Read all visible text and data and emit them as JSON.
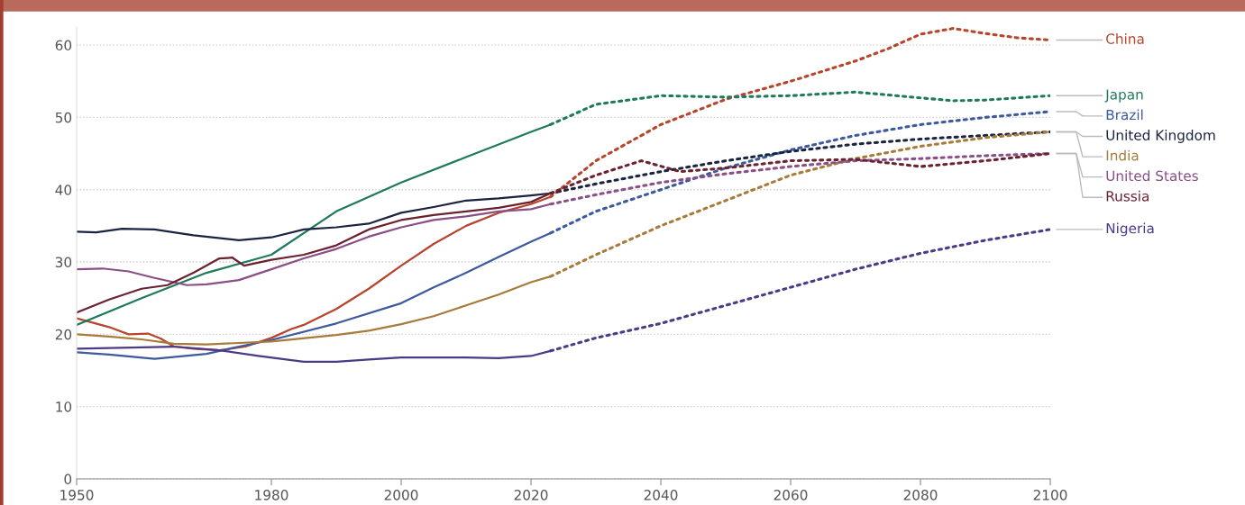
{
  "chart_data": {
    "type": "line",
    "xlim": [
      1950,
      2100
    ],
    "ylim": [
      0,
      62.5
    ],
    "xticks": [
      1950,
      1980,
      2000,
      2020,
      2040,
      2060,
      2080,
      2100
    ],
    "yticks": [
      0,
      10,
      20,
      30,
      40,
      50,
      60
    ],
    "grid": "y",
    "legend": false,
    "marker": "none",
    "series": [
      {
        "color": "#b5452c",
        "line_style": "solid",
        "x": [
          1950,
          1955,
          1958,
          1961,
          1963,
          1965,
          1968,
          1972,
          1976,
          1980,
          1983,
          1985,
          1990,
          1995,
          2000,
          2005,
          2010,
          2015,
          2020,
          2023
        ],
        "values": [
          22.2,
          21,
          20,
          20.1,
          19.4,
          18.3,
          18,
          17.8,
          18.3,
          19.5,
          20.7,
          21.3,
          23.5,
          26.3,
          29.5,
          32.5,
          35,
          36.8,
          38,
          39
        ]
      },
      {
        "name": "China",
        "color": "#b5452c",
        "line_style": "dotted",
        "x": [
          2023,
          2030,
          2040,
          2050,
          2060,
          2070,
          2075,
          2080,
          2085,
          2090,
          2095,
          2100
        ],
        "values": [
          39,
          44,
          49,
          52.5,
          55,
          57.8,
          59.5,
          61.5,
          62.3,
          61.6,
          61,
          60.7
        ]
      },
      {
        "color": "#1f7a5a",
        "line_style": "solid",
        "x": [
          1950,
          1960,
          1970,
          1980,
          1990,
          2000,
          2010,
          2020,
          2023
        ],
        "values": [
          21.3,
          25,
          28.5,
          31,
          37,
          41,
          44.5,
          48,
          49
        ]
      },
      {
        "name": "Japan",
        "color": "#1f7a5a",
        "line_style": "dotted",
        "x": [
          2023,
          2030,
          2040,
          2050,
          2060,
          2070,
          2080,
          2085,
          2090,
          2100
        ],
        "values": [
          49,
          51.8,
          53,
          52.8,
          53,
          53.5,
          52.7,
          52.3,
          52.4,
          53
        ]
      },
      {
        "color": "#3d5a9e",
        "line_style": "solid",
        "x": [
          1950,
          1955,
          1962,
          1970,
          1975,
          1980,
          1990,
          2000,
          2005,
          2010,
          2015,
          2020,
          2023
        ],
        "values": [
          17.5,
          17.2,
          16.6,
          17.3,
          18.3,
          19.2,
          21.5,
          24.3,
          26.5,
          28.5,
          30.7,
          32.8,
          34
        ]
      },
      {
        "name": "Brazil",
        "color": "#3d5a9e",
        "line_style": "dotted",
        "x": [
          2023,
          2030,
          2040,
          2050,
          2060,
          2070,
          2080,
          2090,
          2100
        ],
        "values": [
          34,
          37,
          40,
          43,
          45.5,
          47.5,
          49,
          50,
          50.8
        ]
      },
      {
        "color": "#1a2340",
        "line_style": "solid",
        "x": [
          1950,
          1953,
          1957,
          1962,
          1968,
          1975,
          1980,
          1985,
          1990,
          1995,
          2000,
          2005,
          2010,
          2015,
          2020,
          2023
        ],
        "values": [
          34.2,
          34.1,
          34.6,
          34.5,
          33.7,
          33,
          33.4,
          34.5,
          34.8,
          35.3,
          36.8,
          37.6,
          38.5,
          38.8,
          39.2,
          39.5
        ]
      },
      {
        "name": "United Kingdom",
        "color": "#1a2340",
        "line_style": "dotted",
        "x": [
          2023,
          2030,
          2040,
          2050,
          2060,
          2070,
          2080,
          2090,
          2100
        ],
        "values": [
          39.5,
          40.8,
          42.5,
          44,
          45.3,
          46.3,
          47,
          47.5,
          48
        ]
      },
      {
        "color": "#a87b3a",
        "line_style": "solid",
        "x": [
          1950,
          1955,
          1960,
          1965,
          1970,
          1980,
          1990,
          1995,
          2000,
          2005,
          2010,
          2015,
          2020,
          2023
        ],
        "values": [
          20,
          19.7,
          19.3,
          18.7,
          18.6,
          19,
          19.9,
          20.5,
          21.4,
          22.5,
          24,
          25.5,
          27.2,
          28
        ]
      },
      {
        "name": "India",
        "color": "#a87b3a",
        "line_style": "dotted",
        "x": [
          2023,
          2030,
          2040,
          2050,
          2060,
          2070,
          2080,
          2090,
          2100
        ],
        "values": [
          28,
          31,
          35,
          38.5,
          42,
          44.3,
          46,
          47.2,
          48
        ]
      },
      {
        "color": "#8a4f86",
        "line_style": "solid",
        "x": [
          1950,
          1954,
          1958,
          1962,
          1967,
          1970,
          1975,
          1980,
          1985,
          1990,
          1995,
          2000,
          2005,
          2010,
          2015,
          2020,
          2023
        ],
        "values": [
          29,
          29.1,
          28.7,
          27.8,
          26.8,
          26.9,
          27.5,
          29,
          30.5,
          31.8,
          33.5,
          34.8,
          35.8,
          36.3,
          37,
          37.3,
          38
        ]
      },
      {
        "name": "United States",
        "color": "#8a4f86",
        "line_style": "dotted",
        "x": [
          2023,
          2030,
          2040,
          2050,
          2060,
          2070,
          2080,
          2090,
          2100
        ],
        "values": [
          38,
          39.3,
          41,
          42.2,
          43.2,
          44,
          44.3,
          44.7,
          45
        ]
      },
      {
        "color": "#6b2230",
        "line_style": "solid",
        "x": [
          1950,
          1955,
          1960,
          1964,
          1968,
          1972,
          1974,
          1975.8,
          1980,
          1985,
          1990,
          1995,
          2000,
          2005,
          2010,
          2015,
          2020,
          2023
        ],
        "values": [
          23,
          24.8,
          26.3,
          26.8,
          28.5,
          30.5,
          30.6,
          29.5,
          30.3,
          31,
          32.3,
          34.5,
          35.8,
          36.5,
          37,
          37.5,
          38.3,
          39.5
        ]
      },
      {
        "name": "Russia",
        "color": "#6b2230",
        "line_style": "dotted",
        "x": [
          2023,
          2030,
          2037,
          2043,
          2050,
          2060,
          2070,
          2080,
          2090,
          2100
        ],
        "values": [
          39.5,
          42,
          44,
          42.5,
          43,
          44,
          44.2,
          43.2,
          44,
          45
        ]
      },
      {
        "color": "#4b3a86",
        "line_style": "solid",
        "x": [
          1950,
          1960,
          1965,
          1972,
          1978,
          1985,
          1990,
          1995,
          2000,
          2005,
          2010,
          2015,
          2020,
          2023
        ],
        "values": [
          18,
          18.2,
          18.3,
          17.8,
          17,
          16.2,
          16.2,
          16.5,
          16.8,
          16.8,
          16.8,
          16.7,
          17,
          17.7
        ]
      },
      {
        "name": "Nigeria",
        "color": "#4b3a86",
        "line_style": "dotted",
        "x": [
          2023,
          2030,
          2040,
          2050,
          2060,
          2070,
          2080,
          2090,
          2100
        ],
        "values": [
          17.7,
          19.5,
          21.5,
          24,
          26.5,
          29,
          31.2,
          33,
          34.5
        ]
      }
    ]
  }
}
